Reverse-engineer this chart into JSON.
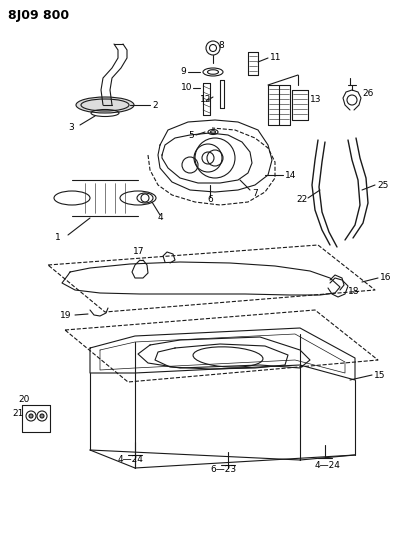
{
  "title": "8J09 800",
  "background_color": "#ffffff",
  "line_color": "#1a1a1a",
  "figsize": [
    4.04,
    5.33
  ],
  "dpi": 100
}
